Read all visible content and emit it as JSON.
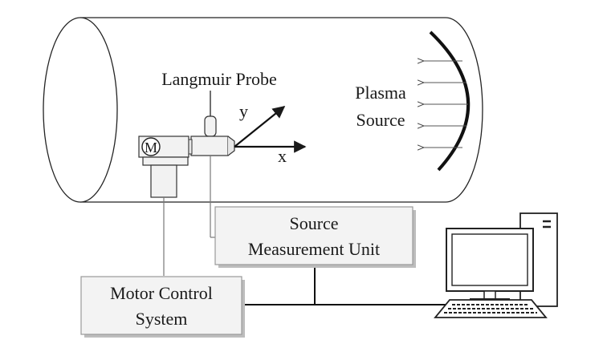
{
  "labels": {
    "probe": "Langmuir Probe",
    "plasma_line1": "Plasma",
    "plasma_line2": "Source",
    "axis_x": "x",
    "axis_y": "y",
    "motor_symbol": "M",
    "smu_line1": "Source",
    "smu_line2": "Measurement Unit",
    "mcs_line1": "Motor Control",
    "mcs_line2": "System"
  },
  "colors": {
    "stroke": "#1a1a1a",
    "line": "#777777",
    "box_fill": "#f3f3f3",
    "box_shadow": "#bdbdbd"
  }
}
